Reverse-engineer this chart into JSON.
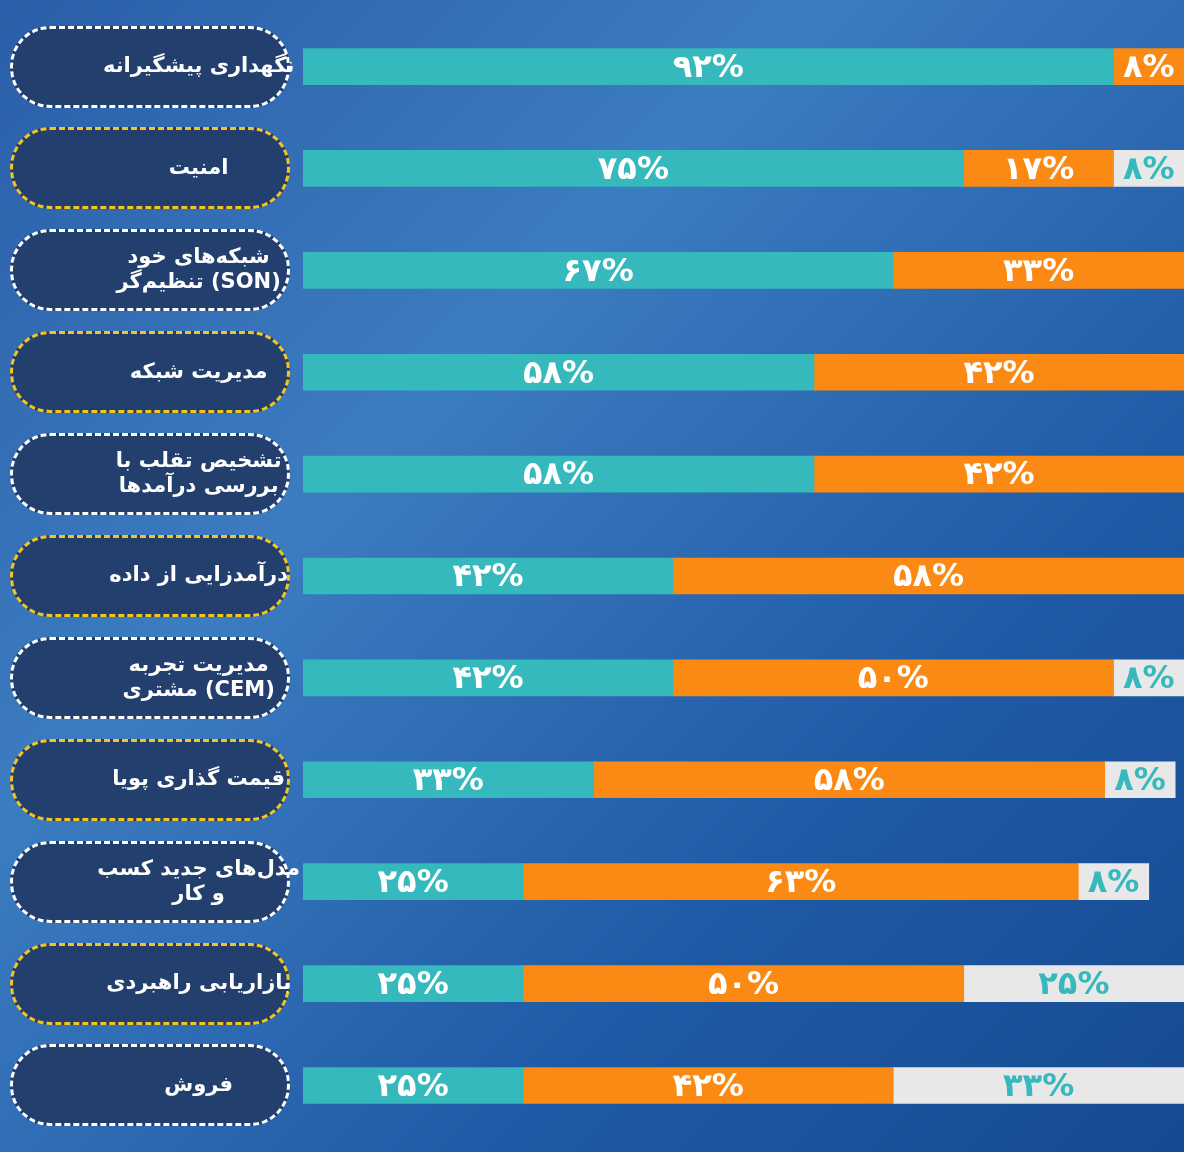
{
  "chart_data": {
    "type": "bar",
    "orientation": "horizontal",
    "stacked": true,
    "categories": [
      "نگهداری پیشگیرانه",
      "امنیت",
      "شبکه‌های خود تنظیم‌گر (SON)",
      "مدیریت شبکه",
      "تشخیص تقلب با بررسی درآمدها",
      "درآمدزایی از داده",
      "مدیریت تجربه مشتری (CEM)",
      "قیمت گذاری پویا",
      "مدل‌های جدید کسب و کار",
      "بازاریابی راهبردی",
      "فروش"
    ],
    "series": [
      {
        "color": "#35b9bd",
        "values": [
          92,
          75,
          67,
          58,
          58,
          42,
          42,
          33,
          25,
          25,
          25
        ],
        "value_labels": [
          "۹۲%",
          "۷۵%",
          "۶۷%",
          "۵۸%",
          "۵۸%",
          "۴۲%",
          "۴۲%",
          "۳۳%",
          "۲۵%",
          "۲۵%",
          "۲۵%"
        ]
      },
      {
        "color": "#fb8a14",
        "values": [
          8,
          17,
          33,
          42,
          42,
          58,
          50,
          58,
          63,
          50,
          42
        ],
        "value_labels": [
          "۸%",
          "۱۷%",
          "۳۳%",
          "۴۲%",
          "۴۲%",
          "۵۸%",
          "۵۰%",
          "۵۸%",
          "۶۳%",
          "۵۰%",
          "۴۲%"
        ]
      },
      {
        "color": "#e8e8e8",
        "values": [
          null,
          8,
          null,
          null,
          null,
          null,
          8,
          8,
          8,
          25,
          33
        ],
        "value_labels": [
          null,
          "۸%",
          null,
          null,
          null,
          null,
          "۸%",
          "۸%",
          "۸%",
          "۲۵%",
          "۳۳%"
        ]
      }
    ],
    "xlim": [
      0,
      100
    ],
    "tick_labels": "y",
    "legend": false
  }
}
